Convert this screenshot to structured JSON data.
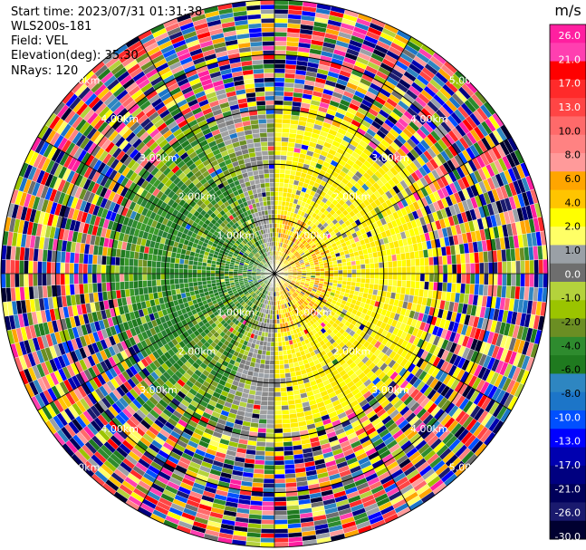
{
  "header": {
    "start_time": "Start time: 2023/07/31 01:31:38",
    "instrument": "WLS200s-181",
    "field": "Field: VEL",
    "elevation": "Elevation(deg): 35.30",
    "nrays": "NRays: 120"
  },
  "chart_data": {
    "type": "heatmap",
    "projection": "polar",
    "n_rays": 120,
    "max_range_km": 5.0,
    "range_rings_km": [
      1.0,
      2.0,
      3.0,
      4.0,
      5.0
    ],
    "range_ring_labels": [
      "1.00km",
      "2.00km",
      "3.00km",
      "4.00km",
      "5.00km"
    ],
    "colorbar": {
      "unit": "m/s",
      "ticks": [
        "26.0",
        "21.0",
        "17.0",
        "13.0",
        "10.0",
        "8.0",
        "6.0",
        "4.0",
        "2.0",
        "1.0",
        "0.0",
        "-1.0",
        "-2.0",
        "-4.0",
        "-6.0",
        "-8.0",
        "-10.0",
        "-13.0",
        "-17.0",
        "-21.0",
        "-26.0",
        "-30.0"
      ],
      "colors": [
        "#ff1fa0",
        "#ff3fb0",
        "#ff0000",
        "#ff2a2a",
        "#ff4545",
        "#ff6a6a",
        "#ff8282",
        "#ff9a9a",
        "#ffa500",
        "#ffc400",
        "#ffff00",
        "#ffff66",
        "#9aa0a6",
        "#6e6e6e",
        "#b4d23c",
        "#9bc400",
        "#6b8e23",
        "#2e8b2e",
        "#1f7a1f",
        "#2e86c1",
        "#1c75c8",
        "#0050ff",
        "#0000ff",
        "#0000b0",
        "#000080",
        "#00005a",
        "#1a1a6e",
        "#000030"
      ]
    },
    "pattern": {
      "inner_range_km": 2.0,
      "transition_range_km": 3.0,
      "east_sector_value_ms": 2.0,
      "west_sector_value_ms": -6.0,
      "outer_region": "noise"
    }
  }
}
